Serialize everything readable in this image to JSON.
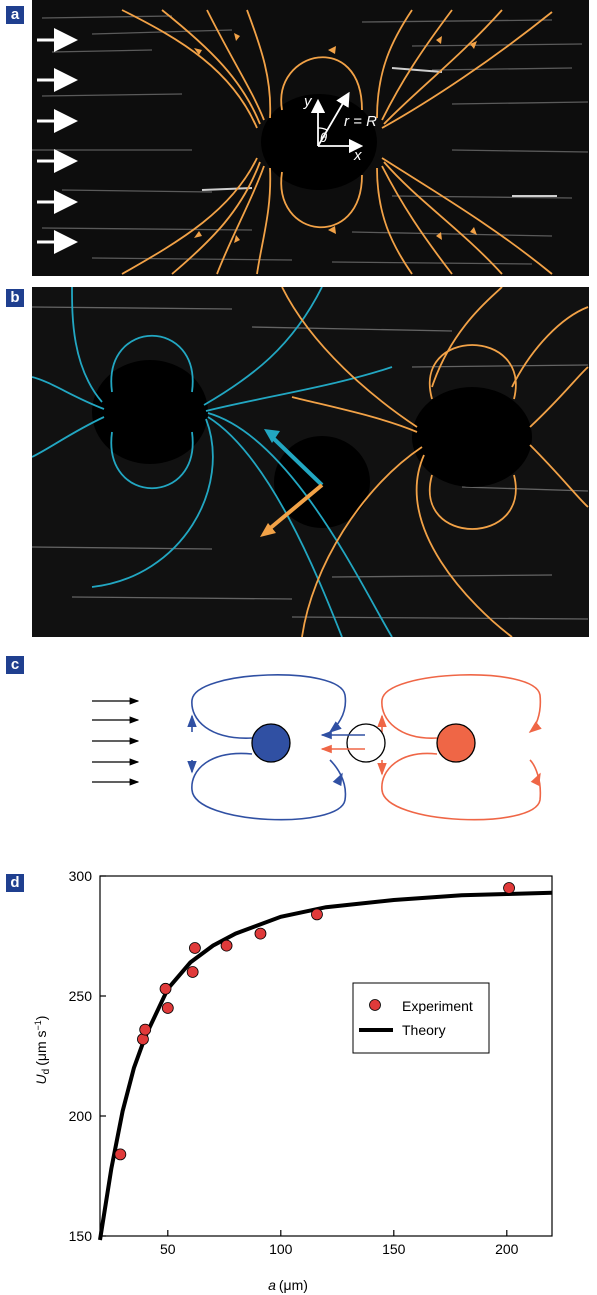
{
  "panels": {
    "a": {
      "tag": "a",
      "label_y": "y",
      "label_r": "r = R",
      "label_theta": "θ",
      "label_x": "x"
    },
    "b": {
      "tag": "b"
    },
    "c": {
      "tag": "c"
    },
    "d": {
      "tag": "d"
    }
  },
  "colors": {
    "orange": "#f2a247",
    "cyan": "#22a7c2",
    "blue": "#3050a3",
    "red": "#ef6646",
    "marker": "#e03a3a",
    "panel_tag": "#1f3f8f"
  },
  "chart_data": {
    "type": "scatter",
    "xlabel_italic": "a",
    "xlabel_unit": "(μm)",
    "ylabel_italic": "U",
    "ylabel_sub": "d",
    "ylabel_unit": "(μm s",
    "ylabel_sup": "−1",
    "ylabel_close": ")",
    "xlim": [
      20,
      220
    ],
    "ylim": [
      150,
      300
    ],
    "xticks": [
      50,
      100,
      150,
      200
    ],
    "yticks": [
      150,
      200,
      250,
      300
    ],
    "legend_position": "right",
    "series": [
      {
        "name": "Experiment",
        "kind": "points",
        "x": [
          29,
          39,
          40,
          49,
          50,
          61,
          62,
          76,
          91,
          116,
          201
        ],
        "y": [
          184,
          232,
          236,
          253,
          245,
          260,
          270,
          271,
          276,
          284,
          295
        ]
      },
      {
        "name": "Theory",
        "kind": "line",
        "x": [
          20,
          25,
          30,
          35,
          40,
          50,
          60,
          70,
          80,
          100,
          120,
          150,
          180,
          200,
          220
        ],
        "y": [
          148,
          178,
          202,
          220,
          233,
          253,
          264,
          271,
          276,
          283,
          287,
          290,
          292,
          292.5,
          293
        ]
      }
    ]
  }
}
